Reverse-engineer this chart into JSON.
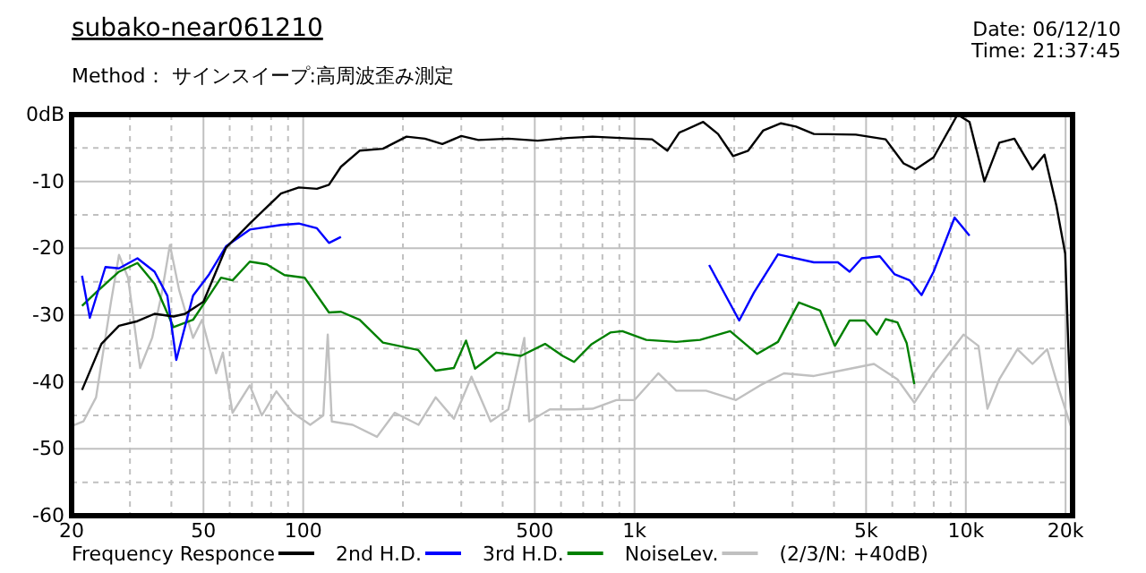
{
  "chart_data": {
    "type": "line",
    "title": "subako-near061210",
    "subtitle": "Method： サインスイープ:高周波歪み測定",
    "annotations": [
      "Date: 06/12/10",
      "Time: 21:37:45",
      "(2/3/N: +40dB)"
    ],
    "log": "x",
    "grid": true,
    "legend": "bottom",
    "line_style": "solid",
    "marker": "none",
    "xlim": [
      20,
      21000
    ],
    "xticks": [
      20,
      {
        "value": 30,
        "label": null
      },
      {
        "value": 40,
        "label": null
      },
      50,
      {
        "value": 60,
        "label": null
      },
      {
        "value": 70,
        "label": null
      },
      {
        "value": 80,
        "label": null
      },
      {
        "value": 90,
        "label": null
      },
      100,
      {
        "value": 200,
        "label": null
      },
      {
        "value": 300,
        "label": null
      },
      {
        "value": 400,
        "label": null
      },
      500,
      {
        "value": 600,
        "label": null
      },
      {
        "value": 700,
        "label": null
      },
      {
        "value": 800,
        "label": null
      },
      {
        "value": 900,
        "label": null
      },
      {
        "value": 1000,
        "label": "1k"
      },
      {
        "value": 2000,
        "label": null
      },
      {
        "value": 3000,
        "label": null
      },
      {
        "value": 4000,
        "label": null
      },
      {
        "value": 5000,
        "label": "5k"
      },
      {
        "value": 6000,
        "label": null
      },
      {
        "value": 7000,
        "label": null
      },
      {
        "value": 8000,
        "label": null
      },
      {
        "value": 9000,
        "label": null
      },
      {
        "value": 10000,
        "label": "10k"
      },
      {
        "value": 20000,
        "label": "20k"
      }
    ],
    "ylim": [
      -60,
      0
    ],
    "yticks": [
      -60,
      {
        "value": -55,
        "label": null
      },
      -50,
      {
        "value": -45,
        "label": null
      },
      -40,
      {
        "value": -35,
        "label": null
      },
      -30,
      {
        "value": -25,
        "label": null
      },
      -20,
      {
        "value": -15,
        "label": null
      },
      -10,
      {
        "value": -5,
        "label": null
      },
      {
        "value": 0,
        "label": "0dB"
      }
    ],
    "series": [
      {
        "name": "Frequency Responce",
        "color": "#000000",
        "x": [
          21.5,
          24.6,
          27.8,
          31.6,
          35.6,
          40.6,
          44,
          50,
          58.5,
          69,
          85.7,
          97,
          110,
          119.6,
          130,
          148,
          174,
          205,
          233,
          263,
          300,
          338,
          416,
          510,
          627,
          747,
          1000,
          1130,
          1256,
          1365,
          1612,
          1787,
          1983,
          2203,
          2443,
          2767,
          3071,
          3478,
          4655,
          5728,
          6487,
          7049,
          7993,
          9440,
          10260,
          11380,
          12620,
          14010,
          15890,
          17270,
          18760,
          19950,
          20400,
          20900
        ],
        "values": [
          -41.2,
          -34.3,
          -31.6,
          -30.9,
          -29.8,
          -30.2,
          -29.8,
          -28,
          -19.9,
          -16.3,
          -11.8,
          -10.9,
          -11.1,
          -10.5,
          -7.8,
          -5.4,
          -5.1,
          -3.3,
          -3.6,
          -4.4,
          -3.2,
          -3.8,
          -3.6,
          -3.9,
          -3.5,
          -3.3,
          -3.6,
          -3.7,
          -5.4,
          -2.7,
          -1.1,
          -2.9,
          -6.2,
          -5.4,
          -2.4,
          -1.3,
          -1.8,
          -2.9,
          -3,
          -3.7,
          -7.3,
          -8.2,
          -6.4,
          0,
          -1.1,
          -10,
          -4.2,
          -3.6,
          -8.2,
          -6,
          -13.6,
          -20.8,
          -35,
          -47.6
        ]
      },
      {
        "name": "2nd H.D.",
        "color": "#0000ff",
        "x": [
          21.5,
          22.7,
          25.3,
          27.8,
          31.6,
          35.6,
          38.9,
          41.4,
          46.5,
          52,
          58.5,
          69,
          85.7,
          97,
          110,
          119.6,
          130,
          500,
          1680,
          2070,
          2295,
          2710,
          3478,
          4110,
          4460,
          4850,
          5500,
          6100,
          6770,
          7350,
          7993,
          9250,
          10260
        ],
        "values": [
          -24.1,
          -30.4,
          -22.8,
          -23,
          -21.5,
          -23.5,
          -27.1,
          -36.7,
          -27.1,
          -23.9,
          -19.7,
          -17.2,
          -16.5,
          -16.3,
          -17,
          -19.2,
          -18.3,
          null,
          -22.5,
          -30.8,
          -26.6,
          -20.9,
          -22.1,
          -22.1,
          -23.5,
          -21.5,
          -21.2,
          -23.9,
          -24.8,
          -27,
          -23.5,
          -15.4,
          -18.1
        ]
      },
      {
        "name": "3rd H.D.",
        "color": "#008000",
        "x": [
          21.5,
          23.7,
          27.8,
          31.6,
          35.6,
          40.6,
          46.5,
          52,
          56.5,
          61.2,
          69,
          77.6,
          87.8,
          101,
          119.6,
          130,
          148,
          174,
          222,
          251,
          285,
          310,
          330,
          383,
          454,
          537,
          607,
          657,
          740,
          845,
          919,
          1085,
          1337,
          1577,
          1944,
          2345,
          2710,
          3134,
          3630,
          4025,
          4460,
          4955,
          5385,
          5728,
          6220,
          6630,
          6990
        ],
        "values": [
          -28.6,
          -26.6,
          -23.5,
          -22.2,
          -25.3,
          -31.8,
          -30.7,
          -27.1,
          -24.4,
          -24.8,
          -22,
          -22.4,
          -24,
          -24.4,
          -29.6,
          -29.5,
          -30.7,
          -34.1,
          -35.2,
          -38.3,
          -37.9,
          -33.8,
          -38,
          -35.6,
          -36.1,
          -34.3,
          -36.1,
          -37,
          -34.4,
          -32.6,
          -32.4,
          -33.7,
          -34,
          -33.7,
          -32.4,
          -35.8,
          -34,
          -28.1,
          -29.3,
          -34.6,
          -30.8,
          -30.8,
          -32.9,
          -30.6,
          -31.1,
          -34.2,
          -40.3
        ]
      },
      {
        "name": "NoiseLev.",
        "color": "#c0c0c0",
        "x": [
          20,
          21.7,
          23.7,
          26.3,
          27.8,
          29.6,
          32.2,
          35,
          37.3,
          39.6,
          42.2,
          46.5,
          49.5,
          54.6,
          57.2,
          61.2,
          69,
          75,
          83,
          93,
          105,
          115,
          118.6,
          122,
          141,
          167,
          189,
          223,
          251,
          285,
          322,
          368,
          416,
          465,
          481,
          555,
          657,
          747,
          881,
          1000,
          1180,
          1337,
          1644,
          2024,
          2393,
          2825,
          3478,
          4280,
          5280,
          6220,
          6990,
          7993,
          9840,
          10920,
          11620,
          12620,
          14310,
          15890,
          17600,
          19150,
          20900
        ],
        "values": [
          -46.6,
          -45.9,
          -42.3,
          -28,
          -21,
          -24.4,
          -37.9,
          -33.4,
          -27.1,
          -19.5,
          -26.2,
          -33.4,
          -30.7,
          -38.7,
          -35.6,
          -44.6,
          -40.5,
          -45,
          -41.4,
          -44.6,
          -46.4,
          -45,
          -32.9,
          -45.9,
          -46.4,
          -48.2,
          -44.6,
          -46.4,
          -42.3,
          -45.5,
          -39.2,
          -45.9,
          -44.1,
          -33.4,
          -45.9,
          -44.1,
          -44.1,
          -44,
          -42.7,
          -42.7,
          -38.7,
          -41.3,
          -41.3,
          -42.7,
          -40.5,
          -38.7,
          -39.1,
          -38.2,
          -37.3,
          -39.6,
          -43.1,
          -38.7,
          -32.9,
          -34.6,
          -44,
          -39.6,
          -35.1,
          -37.3,
          -35.1,
          -41.3,
          -47.1
        ]
      }
    ]
  }
}
